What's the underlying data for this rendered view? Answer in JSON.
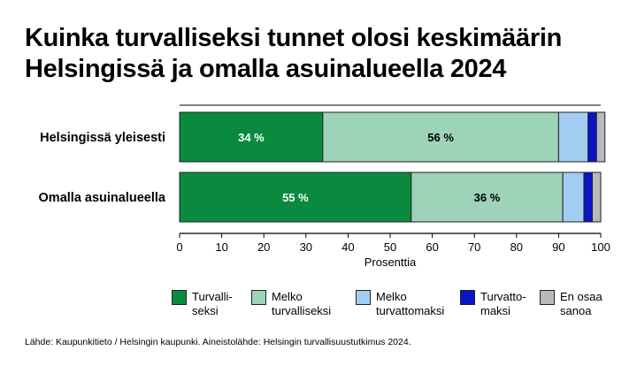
{
  "chart_data": {
    "type": "bar",
    "orientation": "horizontal",
    "stacked": true,
    "title": "Kuinka turvalliseksi tunnet olosi keskimäärin Helsingissä ja omalla asuinalueella 2024",
    "xlabel": "Prosenttia",
    "ylabel": "",
    "xlim": [
      0,
      100
    ],
    "xticks": [
      "0",
      "10",
      "20",
      "30",
      "40",
      "50",
      "60",
      "70",
      "80",
      "90",
      "100"
    ],
    "categories": [
      "Helsingissä yleisesti",
      "Omalla asuinalueella"
    ],
    "series": [
      {
        "name": "Turvalli-\nseksi",
        "color": "#0a8a3f",
        "values": [
          34,
          55
        ],
        "labels": [
          "34 %",
          "55 %"
        ],
        "label_color": "#ffffff"
      },
      {
        "name": "Melko\nturvalliseksi",
        "color": "#9dd3b8",
        "values": [
          56,
          36
        ],
        "labels": [
          "56 %",
          "36 %"
        ],
        "label_color": "#000000"
      },
      {
        "name": "Melko\nturvattomaksi",
        "color": "#a3cdf0",
        "values": [
          7,
          5
        ],
        "labels": [
          "",
          ""
        ],
        "label_color": "#000000"
      },
      {
        "name": "Turvatto-\nmaksi",
        "color": "#0a14c8",
        "values": [
          2,
          2
        ],
        "labels": [
          "",
          ""
        ],
        "label_color": "#ffffff"
      },
      {
        "name": "En osaa\nsanoa",
        "color": "#b8b8bd",
        "values": [
          2,
          2
        ],
        "labels": [
          "",
          ""
        ],
        "label_color": "#000000"
      }
    ],
    "legend_position": "bottom",
    "grid": false
  },
  "source": "Lähde: Kaupunkitieto / Helsingin kaupunki. Aineistolähde: Helsingin turvallisuustutkimus 2024."
}
